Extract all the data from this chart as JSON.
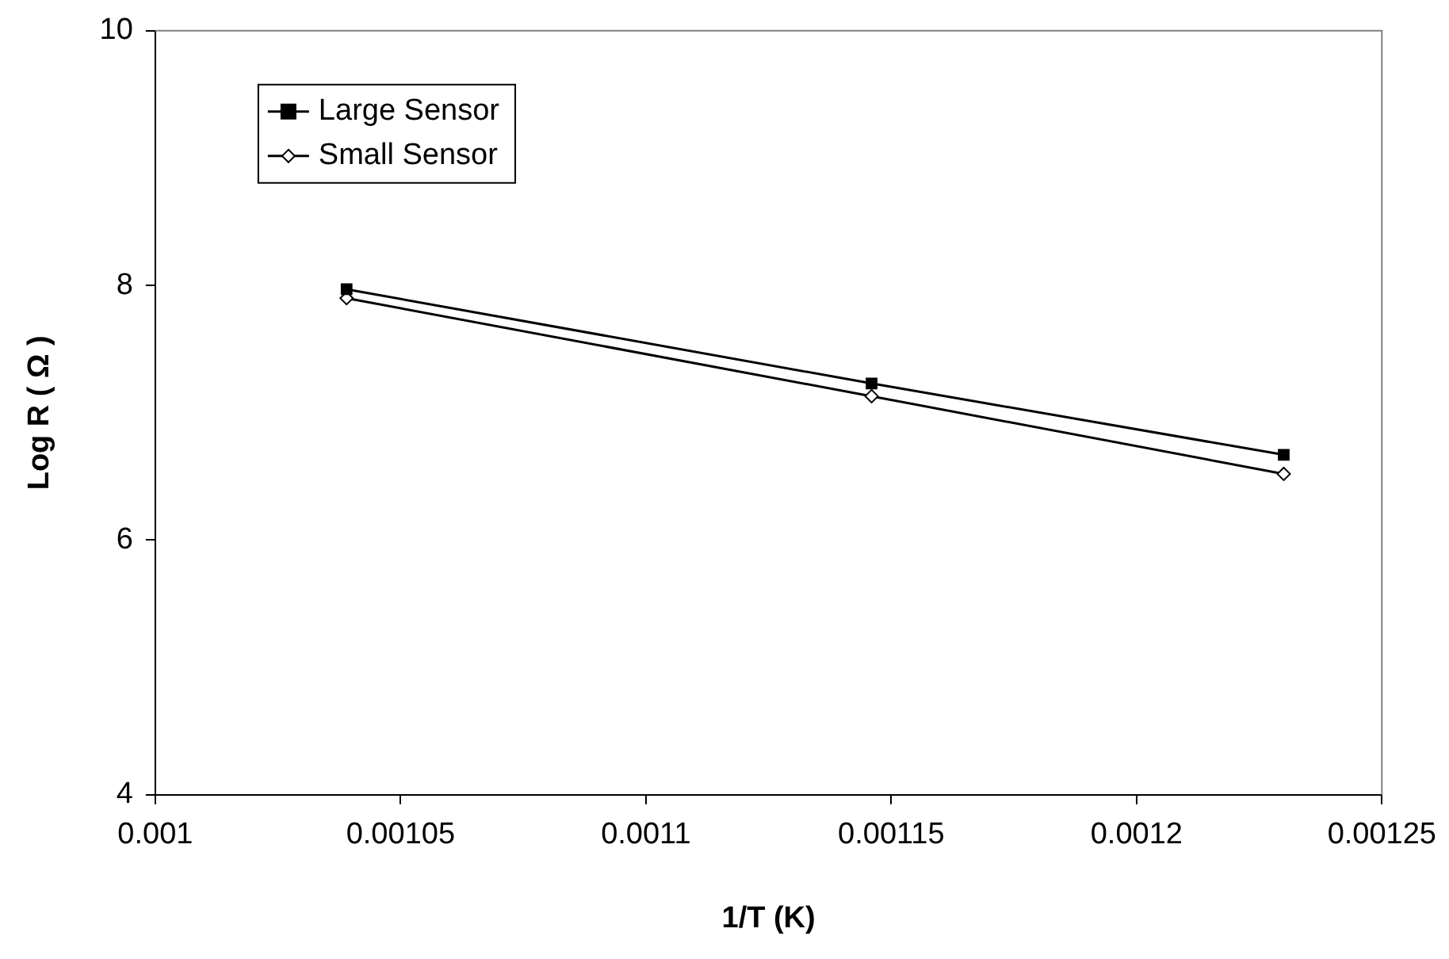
{
  "chart_data": {
    "type": "line",
    "xlabel": "1/T (K)",
    "ylabel": "Log R ( Ω )",
    "x": [
      0.001039,
      0.001146,
      0.00123
    ],
    "series": [
      {
        "name": "Large Sensor",
        "color": "#000000",
        "values": [
          7.97,
          7.23,
          6.67
        ],
        "marker": "square"
      },
      {
        "name": "Small Sensor",
        "color": "#000000",
        "values": [
          7.9,
          7.13,
          6.52
        ],
        "marker": "diamond"
      }
    ],
    "xlim": [
      0.001,
      0.00125
    ],
    "xticks": [
      0.001,
      0.00105,
      0.0011,
      0.00115,
      0.0012,
      0.00125
    ],
    "ylim": [
      4,
      10
    ],
    "yticks": [
      4,
      6,
      8,
      10
    ],
    "grid": false,
    "legend": "top left",
    "line_style": "solid"
  }
}
